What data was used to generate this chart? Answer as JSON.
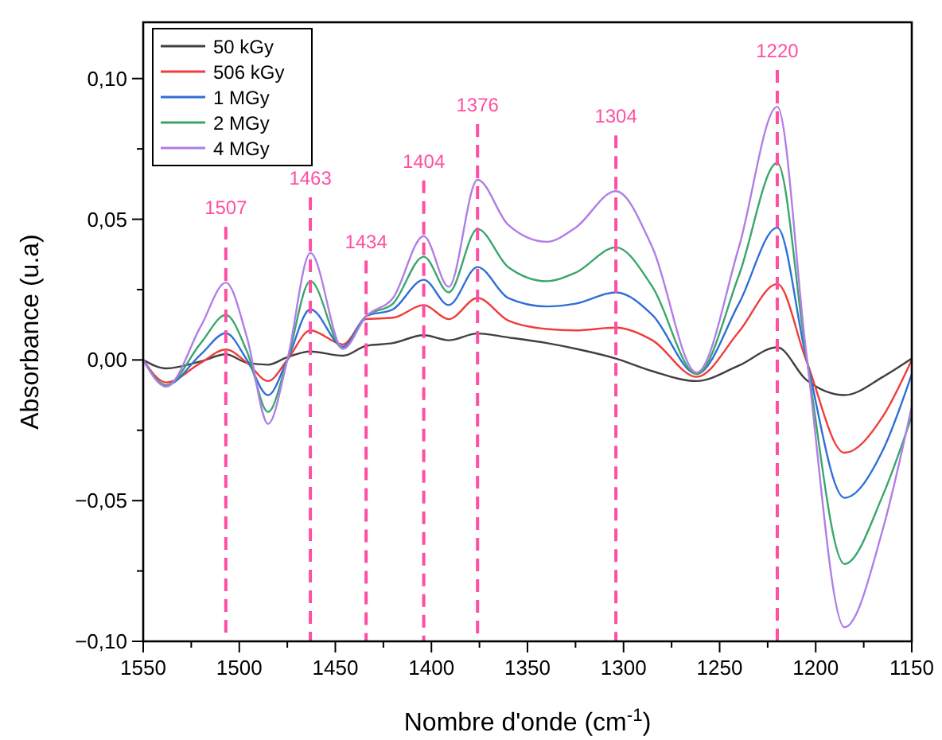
{
  "chart_data": {
    "type": "line",
    "xlabel": "Nombre d'onde (cm$^{-1}$)",
    "ylabel": "Absorbance (u.a)",
    "x": [
      1550,
      1538,
      1520,
      1507,
      1496,
      1485,
      1475,
      1463,
      1446,
      1434,
      1420,
      1404,
      1391,
      1376,
      1360,
      1340,
      1325,
      1304,
      1285,
      1262,
      1240,
      1220,
      1205,
      1185,
      1165,
      1150
    ],
    "series": [
      {
        "name": "50 kGy",
        "color": "#404040",
        "values": [
          0,
          -0.003,
          -0.0005,
          0.002,
          -0.001,
          -0.0017,
          0.001,
          0.003,
          0.0015,
          0.005,
          0.006,
          0.0088,
          0.007,
          0.0094,
          0.008,
          0.006,
          0.004,
          0.0005,
          -0.004,
          -0.0075,
          -0.002,
          0.0045,
          -0.007,
          -0.0125,
          -0.006,
          0.0005
        ]
      },
      {
        "name": "506 kGy",
        "color": "#f03c3c",
        "values": [
          0,
          -0.008,
          -0.001,
          0.0037,
          -0.001,
          -0.0075,
          0,
          0.0105,
          0.0055,
          0.0145,
          0.015,
          0.0195,
          0.0145,
          0.022,
          0.014,
          0.011,
          0.0105,
          0.0115,
          0.007,
          -0.006,
          0.01,
          0.027,
          0,
          -0.033,
          -0.02,
          0
        ]
      },
      {
        "name": "1 MGy",
        "color": "#2f6fd6",
        "values": [
          0,
          -0.009,
          0.002,
          0.0095,
          0,
          -0.0125,
          0,
          0.018,
          0.0047,
          0.0155,
          0.018,
          0.0285,
          0.0195,
          0.033,
          0.022,
          0.019,
          0.02,
          0.024,
          0.016,
          -0.005,
          0.02,
          0.047,
          0.001,
          -0.049,
          -0.032,
          -0.005
        ]
      },
      {
        "name": "2 MGy",
        "color": "#3aa66a",
        "values": [
          0,
          -0.009,
          0.006,
          0.016,
          0.003,
          -0.0185,
          0,
          0.028,
          0.004,
          0.0155,
          0.02,
          0.0367,
          0.024,
          0.0465,
          0.033,
          0.028,
          0.031,
          0.04,
          0.026,
          -0.005,
          0.03,
          0.07,
          0.002,
          -0.0725,
          -0.048,
          -0.02
        ]
      },
      {
        "name": "4 MGy",
        "color": "#b07ee6",
        "values": [
          0,
          -0.0095,
          0.012,
          0.0275,
          0.008,
          -0.0227,
          0,
          0.038,
          0.004,
          0.0155,
          0.022,
          0.044,
          0.026,
          0.064,
          0.048,
          0.042,
          0.047,
          0.06,
          0.04,
          -0.0045,
          0.04,
          0.09,
          0.003,
          -0.095,
          -0.06,
          -0.0165
        ]
      }
    ],
    "xlim": [
      1550,
      1150
    ],
    "xticks": [
      1550,
      {
        "value": 1525,
        "label": null
      },
      1500,
      {
        "value": 1475,
        "label": null
      },
      1450,
      {
        "value": 1425,
        "label": null
      },
      1400,
      {
        "value": 1375,
        "label": null
      },
      1350,
      {
        "value": 1325,
        "label": null
      },
      1300,
      {
        "value": 1275,
        "label": null
      },
      1250,
      {
        "value": 1225,
        "label": null
      },
      1200,
      {
        "value": 1175,
        "label": null
      },
      1150
    ],
    "ylim": [
      -0.1,
      0.12
    ],
    "yticks": [
      {
        "value": -0.1,
        "label": "−0,10"
      },
      {
        "value": -0.075,
        "label": null
      },
      {
        "value": -0.05,
        "label": "−0,05"
      },
      {
        "value": -0.025,
        "label": null
      },
      {
        "value": 0,
        "label": "0,00"
      },
      {
        "value": 0.025,
        "label": null
      },
      {
        "value": 0.05,
        "label": "0,05"
      },
      {
        "value": 0.075,
        "label": null
      },
      {
        "value": 0.1,
        "label": "0,10"
      }
    ],
    "ref_lines": [
      {
        "axis": "x",
        "value": 1507,
        "label": "1507",
        "color": "#ff4fa3",
        "line_style": "dashed"
      },
      {
        "axis": "x",
        "value": 1463,
        "label": "1463",
        "color": "#ff4fa3",
        "line_style": "dashed"
      },
      {
        "axis": "x",
        "value": 1434,
        "label": "1434",
        "color": "#ff4fa3",
        "line_style": "dashed"
      },
      {
        "axis": "x",
        "value": 1404,
        "label": "1404",
        "color": "#ff4fa3",
        "line_style": "dashed"
      },
      {
        "axis": "x",
        "value": 1376,
        "label": "1376",
        "color": "#ff4fa3",
        "line_style": "dashed"
      },
      {
        "axis": "x",
        "value": 1304,
        "label": "1304",
        "color": "#ff4fa3",
        "line_style": "dashed"
      },
      {
        "axis": "x",
        "value": 1220,
        "label": "1220",
        "color": "#ff4fa3",
        "line_style": "dashed"
      }
    ],
    "legend": "top left",
    "grid": false,
    "marker": "none",
    "line_style": "solid"
  }
}
